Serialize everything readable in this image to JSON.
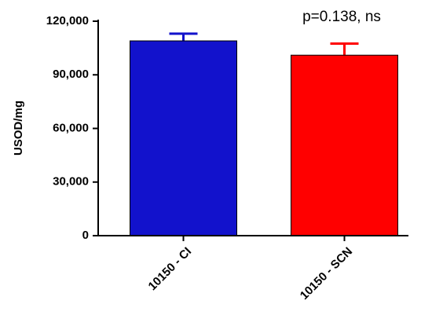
{
  "chart_data": {
    "type": "bar",
    "categories": [
      "10150 - CI",
      "10150 - SCN"
    ],
    "values": [
      109000,
      101000
    ],
    "errors": [
      4000,
      6500
    ],
    "colors": [
      "#1212cc",
      "#ff0000"
    ],
    "ylabel": "USOD/mg",
    "annotation": "p=0.138, ns",
    "ylim": [
      0,
      120000
    ],
    "yticks": [
      0,
      {
        "value": 30000,
        "label": "30,000"
      },
      {
        "value": 60000,
        "label": "60,000"
      },
      {
        "value": 90000,
        "label": "90,000"
      },
      {
        "value": 120000,
        "label": "120,000"
      }
    ]
  }
}
